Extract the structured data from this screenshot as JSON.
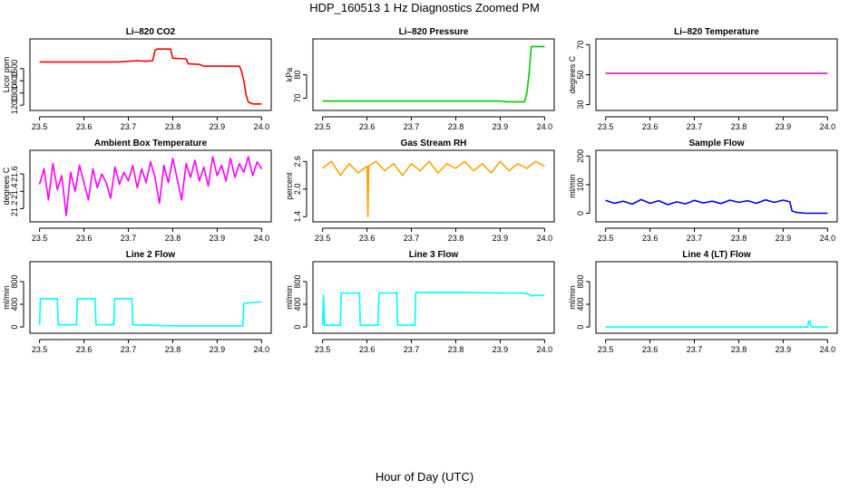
{
  "figure": {
    "title": "HDP_160513  1 Hz Diagnostics Zoomed PM",
    "xlabel": "Hour of Day (UTC)"
  },
  "chart_data": [
    {
      "type": "line",
      "title": "Li–820 CO2",
      "ylabel": "Licor ppm",
      "color": "#ff0000",
      "xlim": [
        23.5,
        24.0
      ],
      "ylim": [
        1180,
        1720
      ],
      "xticks": [
        "23.5",
        "23.6",
        "23.7",
        "23.8",
        "23.9",
        "24.0"
      ],
      "yticks": [
        "1200",
        "1300",
        "1400",
        "1500"
      ],
      "series": [
        {
          "x": [
            23.5,
            23.6,
            23.68,
            23.7,
            23.72,
            23.74,
            23.755,
            23.76,
            23.765,
            23.795,
            23.8,
            23.83,
            23.835,
            23.86,
            23.87,
            23.95,
            23.955,
            23.96,
            23.965,
            23.97,
            23.98,
            24.0
          ],
          "y": [
            1555,
            1555,
            1555,
            1560,
            1565,
            1560,
            1565,
            1650,
            1660,
            1660,
            1585,
            1580,
            1540,
            1535,
            1520,
            1520,
            1480,
            1400,
            1290,
            1225,
            1210,
            1210
          ]
        }
      ]
    },
    {
      "type": "line",
      "title": "Li–820 Pressure",
      "ylabel": "kPa",
      "color": "#00cc00",
      "xlim": [
        23.5,
        24.0
      ],
      "ylim": [
        66,
        94
      ],
      "xticks": [
        "23.5",
        "23.6",
        "23.7",
        "23.8",
        "23.9",
        "24.0"
      ],
      "yticks": [
        "70",
        "80"
      ],
      "series": [
        {
          "x": [
            23.5,
            23.6,
            23.7,
            23.8,
            23.9,
            23.915,
            23.955,
            23.96,
            23.965,
            23.97,
            24.0
          ],
          "y": [
            68.8,
            68.8,
            68.8,
            68.8,
            68.8,
            68.5,
            68.5,
            72,
            80,
            92,
            92
          ]
        }
      ]
    },
    {
      "type": "line",
      "title": "Li–820 Temperature",
      "ylabel": "degrees C",
      "color": "#cc00cc",
      "xlim": [
        23.5,
        24.0
      ],
      "ylim": [
        28,
        72
      ],
      "xticks": [
        "23.5",
        "23.6",
        "23.7",
        "23.8",
        "23.9",
        "24.0"
      ],
      "yticks": [
        "30",
        "50",
        "70"
      ],
      "series": [
        {
          "x": [
            23.5,
            24.0
          ],
          "y": [
            50.9,
            50.9
          ]
        }
      ]
    },
    {
      "type": "line",
      "title": "Ambient Box Temperature",
      "ylabel": "degrees C",
      "color": "#ff00ff",
      "xlim": [
        23.5,
        24.0
      ],
      "ylim": [
        21.08,
        21.84
      ],
      "xticks": [
        "23.5",
        "23.6",
        "23.7",
        "23.8",
        "23.9",
        "24.0"
      ],
      "yticks": [
        "21.2",
        "21.4",
        "21.6"
      ],
      "series": [
        {
          "x": [
            23.5,
            23.51,
            23.52,
            23.53,
            23.54,
            23.55,
            23.56,
            23.57,
            23.58,
            23.59,
            23.6,
            23.61,
            23.62,
            23.63,
            23.64,
            23.65,
            23.66,
            23.67,
            23.68,
            23.69,
            23.7,
            23.71,
            23.72,
            23.73,
            23.74,
            23.75,
            23.76,
            23.77,
            23.78,
            23.79,
            23.8,
            23.81,
            23.82,
            23.83,
            23.84,
            23.85,
            23.86,
            23.87,
            23.88,
            23.89,
            23.9,
            23.91,
            23.92,
            23.93,
            23.94,
            23.95,
            23.96,
            23.97,
            23.98,
            23.99,
            24.0
          ],
          "y": [
            21.48,
            21.66,
            21.3,
            21.72,
            21.42,
            21.58,
            21.12,
            21.62,
            21.4,
            21.7,
            21.5,
            21.3,
            21.66,
            21.44,
            21.6,
            21.5,
            21.32,
            21.68,
            21.48,
            21.62,
            21.52,
            21.7,
            21.44,
            21.66,
            21.5,
            21.74,
            21.56,
            21.26,
            21.7,
            21.5,
            21.78,
            21.54,
            21.3,
            21.72,
            21.56,
            21.76,
            21.52,
            21.68,
            21.46,
            21.8,
            21.58,
            21.7,
            21.52,
            21.78,
            21.56,
            21.72,
            21.62,
            21.8,
            21.58,
            21.74,
            21.66
          ]
        }
      ]
    },
    {
      "type": "line",
      "title": "Gas Stream RH",
      "ylabel": "percent",
      "color": "#ffa500",
      "xlim": [
        23.5,
        24.0
      ],
      "ylim": [
        1.35,
        2.78
      ],
      "xticks": [
        "23.5",
        "23.6",
        "23.7",
        "23.8",
        "23.9",
        "24.0"
      ],
      "yticks": [
        "1.4",
        "2.0",
        "2.6"
      ],
      "series": [
        {
          "x": [
            23.5,
            23.52,
            23.54,
            23.56,
            23.58,
            23.6,
            23.602,
            23.604,
            23.62,
            23.64,
            23.66,
            23.68,
            23.7,
            23.72,
            23.74,
            23.76,
            23.78,
            23.8,
            23.82,
            23.84,
            23.86,
            23.88,
            23.9,
            23.92,
            23.94,
            23.96,
            23.98,
            24.0
          ],
          "y": [
            2.45,
            2.6,
            2.3,
            2.55,
            2.35,
            2.5,
            1.4,
            2.5,
            2.6,
            2.4,
            2.55,
            2.3,
            2.55,
            2.4,
            2.6,
            2.35,
            2.55,
            2.45,
            2.6,
            2.4,
            2.55,
            2.35,
            2.6,
            2.4,
            2.55,
            2.45,
            2.6,
            2.5
          ]
        }
      ]
    },
    {
      "type": "line",
      "title": "Sample Flow",
      "ylabel": "ml/min",
      "color": "#0000ff",
      "xlim": [
        23.5,
        24.0
      ],
      "ylim": [
        -20,
        210
      ],
      "xticks": [
        "23.5",
        "23.6",
        "23.7",
        "23.8",
        "23.9",
        "24.0"
      ],
      "yticks": [
        "0",
        "100",
        "200"
      ],
      "series": [
        {
          "x": [
            23.5,
            23.52,
            23.54,
            23.56,
            23.58,
            23.6,
            23.62,
            23.64,
            23.66,
            23.68,
            23.7,
            23.72,
            23.74,
            23.76,
            23.78,
            23.8,
            23.82,
            23.84,
            23.86,
            23.88,
            23.9,
            23.915,
            23.92,
            23.93,
            23.95,
            24.0
          ],
          "y": [
            45,
            35,
            42,
            32,
            48,
            35,
            44,
            30,
            40,
            33,
            45,
            36,
            42,
            34,
            46,
            38,
            44,
            35,
            47,
            38,
            46,
            40,
            8,
            3,
            0,
            0
          ]
        }
      ]
    },
    {
      "type": "line",
      "title": "Line 2 Flow",
      "ylabel": "ml/min",
      "color": "#00ffff",
      "xlim": [
        23.5,
        24.0
      ],
      "ylim": [
        -60,
        1100
      ],
      "xticks": [
        "23.5",
        "23.6",
        "23.7",
        "23.8",
        "23.9",
        "24.0"
      ],
      "yticks": [
        "0",
        "400",
        "800"
      ],
      "series": [
        {
          "x": [
            23.5,
            23.502,
            23.54,
            23.542,
            23.583,
            23.585,
            23.625,
            23.627,
            23.667,
            23.669,
            23.708,
            23.71,
            23.75,
            23.8,
            23.9,
            23.958,
            23.96,
            24.0
          ],
          "y": [
            40,
            500,
            500,
            40,
            40,
            500,
            500,
            40,
            40,
            500,
            500,
            40,
            30,
            20,
            20,
            20,
            420,
            440
          ]
        }
      ]
    },
    {
      "type": "line",
      "title": "Line 3 Flow",
      "ylabel": "ml/min",
      "color": "#00ffff",
      "xlim": [
        23.5,
        24.0
      ],
      "ylim": [
        -60,
        1100
      ],
      "xticks": [
        "23.5",
        "23.6",
        "23.7",
        "23.8",
        "23.9",
        "24.0"
      ],
      "yticks": [
        "0",
        "400",
        "800"
      ],
      "series": [
        {
          "x": [
            23.5,
            23.502,
            23.504,
            23.54,
            23.542,
            23.583,
            23.585,
            23.625,
            23.627,
            23.667,
            23.669,
            23.708,
            23.71,
            23.8,
            23.9,
            23.94,
            23.96,
            23.97,
            24.0
          ],
          "y": [
            30,
            560,
            30,
            30,
            600,
            600,
            30,
            30,
            600,
            600,
            30,
            30,
            610,
            610,
            600,
            600,
            590,
            550,
            560
          ]
        }
      ]
    },
    {
      "type": "line",
      "title": "Line 4 (LT) Flow",
      "ylabel": "ml/min",
      "color": "#00ffff",
      "xlim": [
        23.5,
        24.0
      ],
      "ylim": [
        -60,
        1100
      ],
      "xticks": [
        "23.5",
        "23.6",
        "23.7",
        "23.8",
        "23.9",
        "24.0"
      ],
      "yticks": [
        "0",
        "400",
        "800"
      ],
      "series": [
        {
          "x": [
            23.5,
            23.6,
            23.7,
            23.8,
            23.9,
            23.955,
            23.958,
            23.96,
            23.962,
            23.965,
            24.0
          ],
          "y": [
            0,
            0,
            0,
            0,
            0,
            0,
            100,
            110,
            30,
            0,
            0
          ]
        }
      ]
    }
  ]
}
